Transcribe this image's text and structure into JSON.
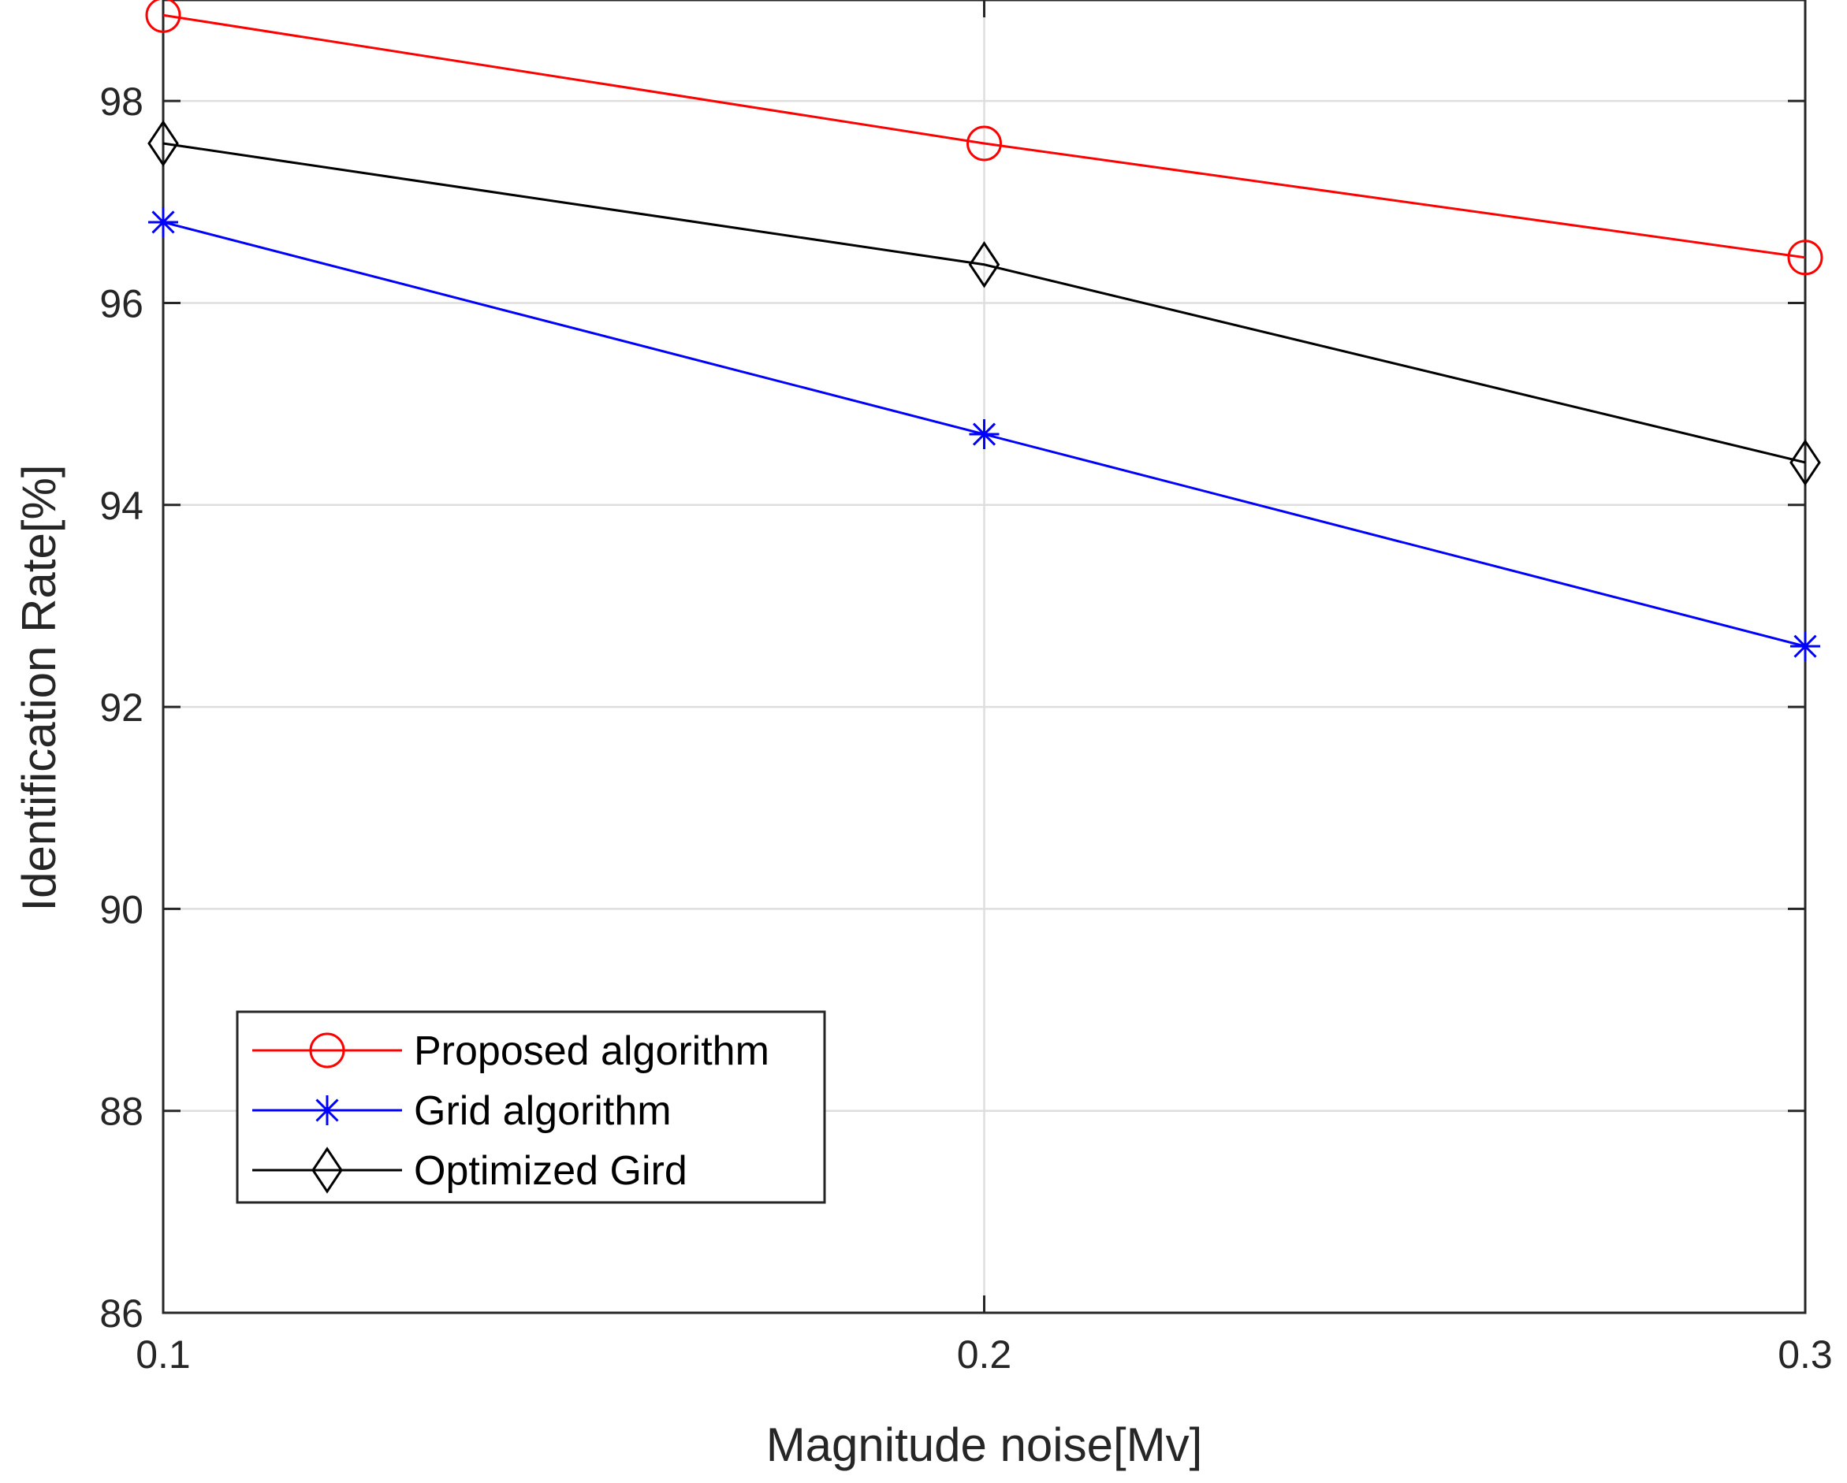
{
  "chart_data": {
    "type": "line",
    "title": "",
    "xlabel": "Magnitude noise[Mv]",
    "ylabel": "Identification Rate[%]",
    "x": [
      0.1,
      0.2,
      0.3
    ],
    "xlim": [
      0.1,
      0.3
    ],
    "ylim": [
      86,
      99.0
    ],
    "xticks": [
      0.1,
      0.2,
      0.3
    ],
    "xtick_labels": [
      "0.1",
      "0.2",
      "0.3"
    ],
    "yticks": [
      86,
      88,
      90,
      92,
      94,
      96,
      98
    ],
    "ytick_labels": [
      "86",
      "88",
      "90",
      "92",
      "94",
      "96",
      "98"
    ],
    "grid": true,
    "legend_position": "lower-left",
    "series": [
      {
        "name": "Proposed algorithm",
        "values": [
          98.85,
          97.58,
          96.45
        ],
        "color": "#ff0000",
        "marker": "circle"
      },
      {
        "name": "Grid algorithm",
        "values": [
          96.8,
          94.7,
          92.6
        ],
        "color": "#0000ff",
        "marker": "asterisk"
      },
      {
        "name": "Optimized Gird",
        "values": [
          97.58,
          96.38,
          94.42
        ],
        "color": "#000000",
        "marker": "diamond"
      }
    ]
  }
}
